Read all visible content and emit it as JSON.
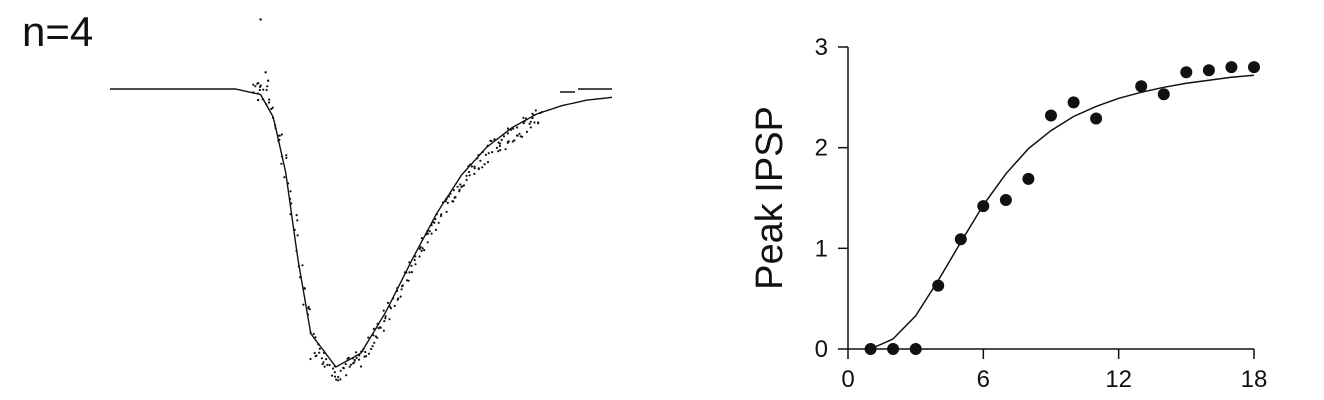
{
  "chart_data": [
    {
      "type": "line",
      "title": "n=4",
      "description_visible": "Averaged IPSP trace (dots) with fitted curve",
      "baseline_level": 0,
      "fit": {
        "t": [
          0,
          25,
          50,
          60,
          65,
          70,
          75,
          80,
          90,
          100,
          110,
          120,
          130,
          140,
          150,
          160,
          170,
          180,
          190,
          200
        ],
        "v": [
          0,
          0,
          0,
          -0.02,
          -0.1,
          -0.3,
          -0.62,
          -0.88,
          -1.0,
          -0.95,
          -0.8,
          -0.62,
          -0.45,
          -0.31,
          -0.21,
          -0.14,
          -0.09,
          -0.06,
          -0.04,
          -0.03
        ]
      }
    },
    {
      "type": "scatter",
      "title": "",
      "xlabel": "",
      "ylabel": "Peak IPSP",
      "xlim": [
        0,
        18
      ],
      "ylim": [
        0,
        3
      ],
      "xticks": [
        "0",
        "6",
        "12",
        "18"
      ],
      "yticks": [
        "0",
        "1",
        "2",
        "3"
      ],
      "points": {
        "x": [
          1,
          2,
          3,
          4,
          5,
          6,
          7,
          8,
          9,
          10,
          11,
          13,
          14,
          15,
          16,
          17,
          18
        ],
        "y": [
          0.0,
          0.0,
          0.0,
          0.63,
          1.09,
          1.42,
          1.48,
          1.69,
          2.32,
          2.45,
          2.29,
          2.61,
          2.53,
          2.75,
          2.77,
          2.8,
          2.8
        ]
      },
      "fit": {
        "x": [
          1,
          2,
          3,
          4,
          5,
          6,
          7,
          8,
          9,
          10,
          11,
          12,
          13,
          14,
          15,
          16,
          17,
          18
        ],
        "y": [
          0.0,
          0.1,
          0.33,
          0.68,
          1.06,
          1.43,
          1.74,
          1.99,
          2.17,
          2.31,
          2.41,
          2.49,
          2.55,
          2.6,
          2.64,
          2.67,
          2.7,
          2.72
        ]
      }
    }
  ]
}
